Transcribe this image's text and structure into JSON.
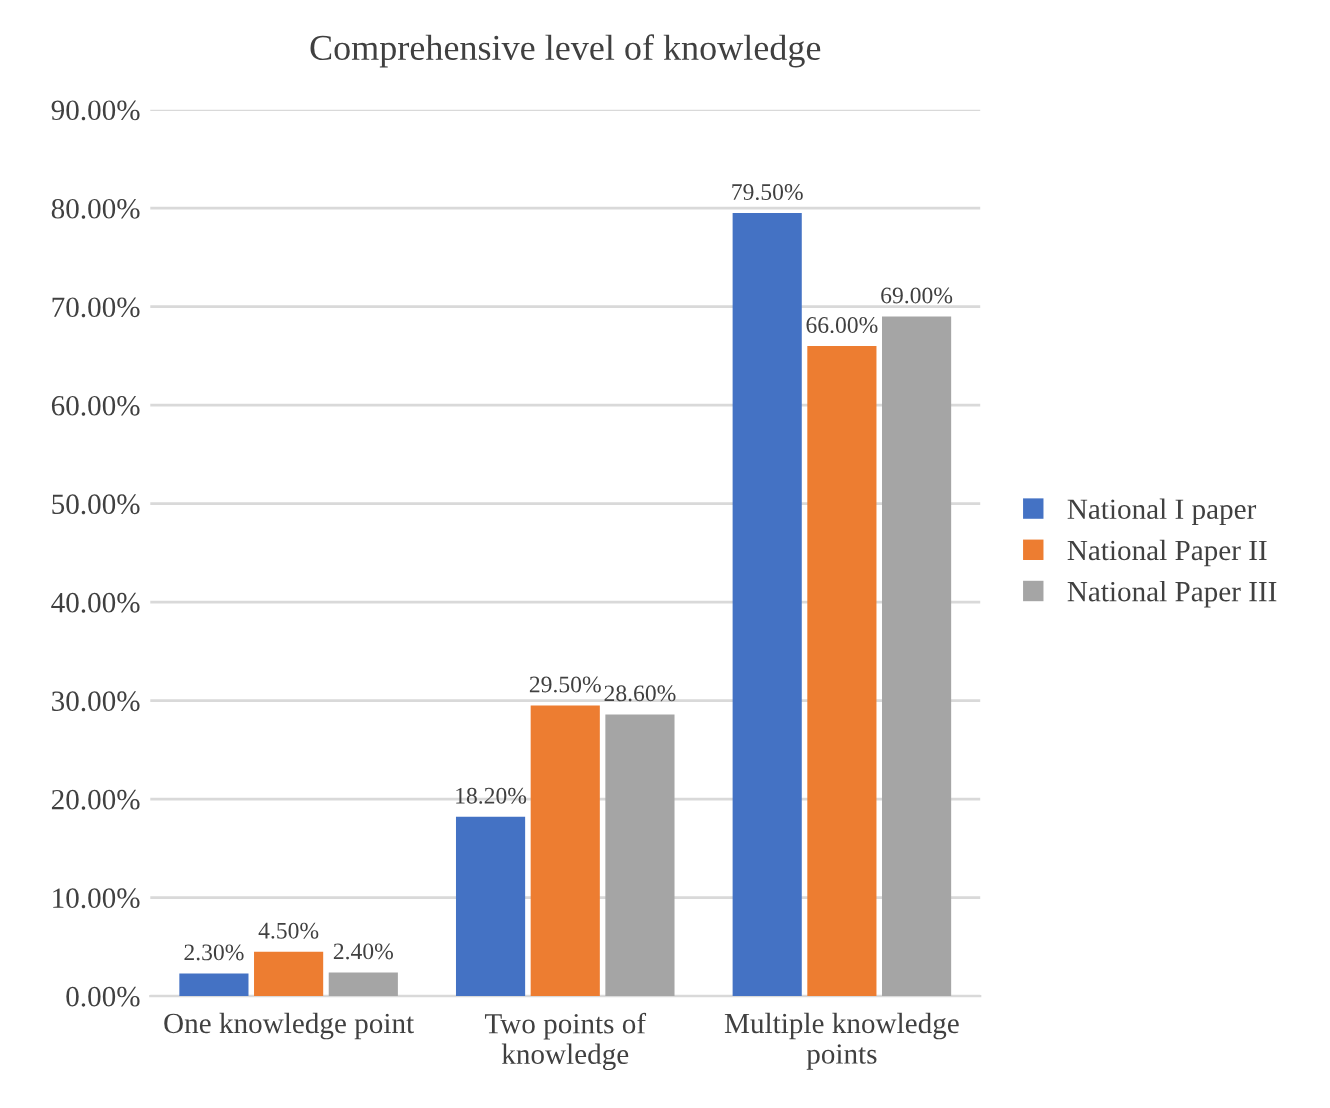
{
  "chart_data": {
    "type": "bar",
    "title": "Comprehensive level of knowledge",
    "categories": [
      "One knowledge point",
      "Two points of\nknowledge",
      "Multiple knowledge\npoints"
    ],
    "series": [
      {
        "name": "National I paper",
        "color": "#4472c4",
        "values": [
          2.3,
          18.2,
          79.5
        ],
        "value_labels": [
          "2.30%",
          "18.20%",
          "79.50%"
        ]
      },
      {
        "name": "National Paper II",
        "color": "#ed7d31",
        "values": [
          4.5,
          29.5,
          66.0
        ],
        "value_labels": [
          "4.50%",
          "29.50%",
          "66.00%"
        ]
      },
      {
        "name": "National Paper III",
        "color": "#a5a5a5",
        "values": [
          2.4,
          28.6,
          69.0
        ],
        "value_labels": [
          "2.40%",
          "28.60%",
          "69.00%"
        ]
      }
    ],
    "ylim": [
      0,
      90
    ],
    "yticks": [
      {
        "value": 0,
        "label": "0.00%"
      },
      {
        "value": 10,
        "label": "10.00%"
      },
      {
        "value": 20,
        "label": "20.00%"
      },
      {
        "value": 30,
        "label": "30.00%"
      },
      {
        "value": 40,
        "label": "40.00%"
      },
      {
        "value": 50,
        "label": "50.00%"
      },
      {
        "value": 60,
        "label": "60.00%"
      },
      {
        "value": 70,
        "label": "70.00%"
      },
      {
        "value": 80,
        "label": "80.00%"
      },
      {
        "value": 90,
        "label": "90.00%"
      }
    ],
    "grid": "y",
    "legend": "right"
  }
}
